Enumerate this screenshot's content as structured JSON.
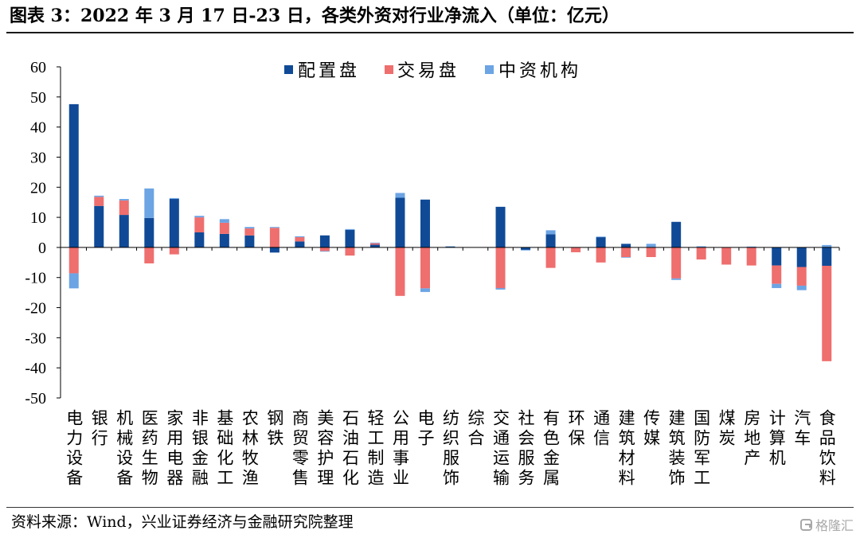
{
  "chart_data": {
    "type": "bar",
    "stacked": true,
    "title": "图表 3：2022 年 3 月 17 日-23 日，各类外资对行业净流入（单位：亿元）",
    "categories": [
      "电力设备",
      "银行",
      "机械设备",
      "医药生物",
      "家用电器",
      "非银金融",
      "基础化工",
      "农林牧渔",
      "钢铁",
      "商贸零售",
      "美容护理",
      "石油石化",
      "轻工制造",
      "公用事业",
      "电子",
      "纺织服饰",
      "综合",
      "交通运输",
      "社会服务",
      "有色金属",
      "环保",
      "通信",
      "建筑材料",
      "传媒",
      "建筑装饰",
      "国防军工",
      "煤炭",
      "房地产",
      "计算机",
      "汽车",
      "食品饮料"
    ],
    "series": [
      {
        "name": "配置盘",
        "color": "#104A97",
        "values": [
          47.6,
          13.8,
          10.8,
          9.8,
          16.1,
          5.0,
          4.5,
          4.0,
          -1.7,
          2.0,
          4.0,
          5.8,
          0.9,
          16.5,
          15.9,
          0.3,
          0,
          13.5,
          -0.8,
          4.4,
          0,
          3.4,
          1.2,
          0,
          8.5,
          0,
          0,
          0,
          -6.0,
          -6.5,
          -6.1
        ]
      },
      {
        "name": "交易盘",
        "color": "#EF6E6E",
        "values": [
          -8.6,
          3.0,
          4.8,
          -5.3,
          -2.3,
          5.0,
          3.7,
          2.3,
          6.5,
          1.4,
          -1.2,
          -2.7,
          0.5,
          -16.1,
          -13.6,
          0,
          0,
          -13.5,
          0,
          -6.8,
          -1.6,
          -5.0,
          -3.2,
          -3.2,
          -10.3,
          -4.0,
          -5.7,
          -6.0,
          -6.1,
          -6.2,
          -31.7
        ]
      },
      {
        "name": "中资机构",
        "color": "#6CA4E4",
        "values": [
          -5.0,
          0.4,
          0.5,
          9.8,
          0.3,
          0.5,
          1.2,
          0.5,
          0.3,
          0.3,
          -0.2,
          0.3,
          0.2,
          1.6,
          -1.2,
          0.1,
          0,
          -0.5,
          -0.2,
          1.3,
          0,
          0.2,
          -0.2,
          1.2,
          -0.5,
          0.4,
          0,
          0.3,
          -1.4,
          -1.5,
          0.8
        ]
      }
    ],
    "ylim": [
      -50,
      60
    ],
    "yticks": [
      60,
      50,
      40,
      30,
      20,
      10,
      0,
      -10,
      -20,
      -30,
      -40,
      -50
    ],
    "grid": false,
    "legend": "top-center"
  },
  "source": "资料来源：Wind，兴业证券经济与金融研究院整理",
  "watermark": "格隆汇"
}
